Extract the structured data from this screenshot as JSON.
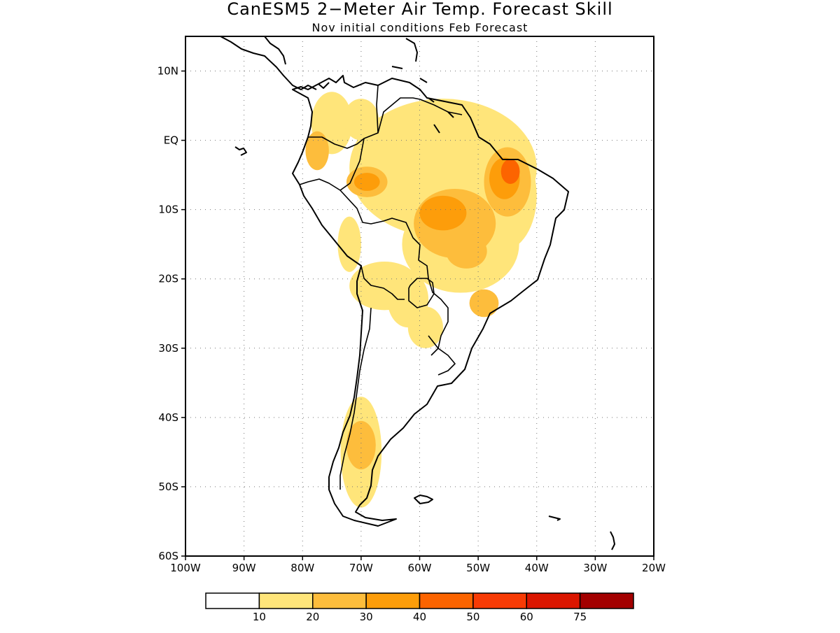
{
  "title": "CanESM5 2−Meter Air Temp. Forecast Skill",
  "subtitle": "Nov initial conditions  Feb Forecast",
  "map": {
    "lon_range": [
      -100,
      -20
    ],
    "lat_range": [
      -60,
      15
    ],
    "lon_ticks": [
      {
        "value": -100,
        "label": "100W"
      },
      {
        "value": -90,
        "label": "90W"
      },
      {
        "value": -80,
        "label": "80W"
      },
      {
        "value": -70,
        "label": "70W"
      },
      {
        "value": -60,
        "label": "60W"
      },
      {
        "value": -50,
        "label": "50W"
      },
      {
        "value": -40,
        "label": "40W"
      },
      {
        "value": -30,
        "label": "30W"
      },
      {
        "value": -20,
        "label": "20W"
      }
    ],
    "lat_ticks": [
      {
        "value": 10,
        "label": "10N"
      },
      {
        "value": 0,
        "label": "EQ"
      },
      {
        "value": -10,
        "label": "10S"
      },
      {
        "value": -20,
        "label": "20S"
      },
      {
        "value": -30,
        "label": "30S"
      },
      {
        "value": -40,
        "label": "40S"
      },
      {
        "value": -50,
        "label": "50S"
      },
      {
        "value": -60,
        "label": "60S"
      }
    ],
    "grid": true
  },
  "colorbar": {
    "colors": [
      "#ffffff",
      "#ffe57a",
      "#fdbd3c",
      "#fd9d0a",
      "#fc6400",
      "#f83b05",
      "#db1600",
      "#a30000"
    ],
    "labels": [
      "10",
      "20",
      "30",
      "40",
      "50",
      "60",
      "75"
    ]
  },
  "skill_regions": [
    {
      "level": 1,
      "lon": -56,
      "lat": -4,
      "rx": 16,
      "ry": 10
    },
    {
      "level": 1,
      "lon": -53,
      "lat": -15,
      "rx": 10,
      "ry": 7
    },
    {
      "level": 1,
      "lon": -46,
      "lat": -8,
      "rx": 6,
      "ry": 8
    },
    {
      "level": 1,
      "lon": -75,
      "lat": 2.5,
      "rx": 3.5,
      "ry": 4.5
    },
    {
      "level": 1,
      "lon": -70,
      "lat": -45,
      "rx": 3.5,
      "ry": 8
    },
    {
      "level": 1,
      "lon": -66,
      "lat": -21,
      "rx": 6,
      "ry": 3.5
    },
    {
      "level": 1,
      "lon": -62,
      "lat": -23,
      "rx": 3.5,
      "ry": 4
    },
    {
      "level": 1,
      "lon": -59,
      "lat": -27,
      "rx": 3,
      "ry": 3
    },
    {
      "level": 1,
      "lon": -70,
      "lat": 3,
      "rx": 3,
      "ry": 3
    },
    {
      "level": 1,
      "lon": -72,
      "lat": -15,
      "rx": 2,
      "ry": 4
    },
    {
      "level": 2,
      "lon": -54,
      "lat": -12,
      "rx": 7,
      "ry": 5
    },
    {
      "level": 2,
      "lon": -69,
      "lat": -6,
      "rx": 3.5,
      "ry": 2.2
    },
    {
      "level": 2,
      "lon": -45,
      "lat": -6,
      "rx": 4,
      "ry": 5
    },
    {
      "level": 2,
      "lon": -77.5,
      "lat": -1.5,
      "rx": 2,
      "ry": 2.8
    },
    {
      "level": 2,
      "lon": -70,
      "lat": -44,
      "rx": 2.5,
      "ry": 3.5
    },
    {
      "level": 2,
      "lon": -49,
      "lat": -23.5,
      "rx": 2.5,
      "ry": 2
    },
    {
      "level": 2,
      "lon": -52,
      "lat": -16,
      "rx": 3.5,
      "ry": 2.5
    },
    {
      "level": 3,
      "lon": -56,
      "lat": -10.5,
      "rx": 4,
      "ry": 2.5
    },
    {
      "level": 3,
      "lon": -69,
      "lat": -6,
      "rx": 2.2,
      "ry": 1.3
    },
    {
      "level": 3,
      "lon": -45.5,
      "lat": -5.5,
      "rx": 2.6,
      "ry": 3
    },
    {
      "level": 4,
      "lon": -44.5,
      "lat": -4.5,
      "rx": 1.6,
      "ry": 1.8
    }
  ]
}
